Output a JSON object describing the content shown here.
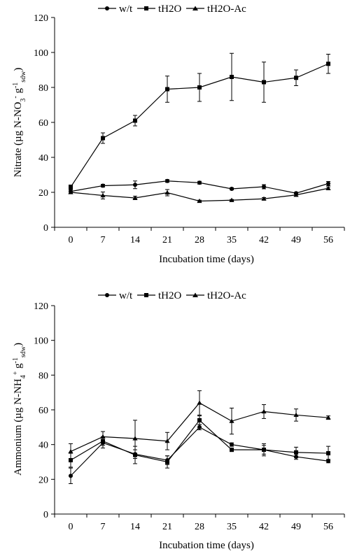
{
  "chart_data": [
    {
      "type": "line",
      "ylabel_main": "Nitrate (µg N-NO",
      "ylabel_sub1": "3",
      "ylabel_sup1": "-",
      "ylabel_mid": " g",
      "ylabel_sup2": "-1",
      "ylabel_sub2": "sdw",
      "ylabel_end": ")",
      "xlabel": "Incubation time (days)",
      "x": [
        0,
        7,
        14,
        21,
        28,
        35,
        42,
        49,
        56
      ],
      "ylim": [
        0,
        120
      ],
      "yticks": [
        0,
        20,
        40,
        60,
        80,
        100,
        120
      ],
      "legend_position": "top",
      "grid": false,
      "series": [
        {
          "name": "w/t",
          "marker": "circle",
          "values": [
            20.5,
            23.8,
            24.3,
            26.5,
            25.5,
            22.0,
            23.2,
            19.5,
            25.0
          ],
          "errors": [
            1.0,
            0.8,
            2.2,
            0.8,
            0.8,
            0.6,
            1.2,
            0.5,
            1.2
          ]
        },
        {
          "name": "tH2O",
          "marker": "square",
          "values": [
            23.0,
            51.0,
            61.0,
            79.0,
            80.0,
            86.0,
            83.0,
            85.5,
            93.5
          ],
          "errors": [
            1.2,
            3.0,
            3.0,
            7.5,
            8.0,
            13.5,
            11.5,
            4.5,
            5.5
          ]
        },
        {
          "name": "tH2O-Ac",
          "marker": "triangle",
          "values": [
            20.0,
            18.2,
            16.8,
            19.8,
            15.0,
            15.5,
            16.3,
            18.5,
            22.3
          ],
          "errors": [
            0.8,
            2.0,
            1.0,
            1.8,
            0.5,
            0.4,
            0.7,
            0.8,
            0.8
          ]
        }
      ]
    },
    {
      "type": "line",
      "ylabel_main": "Ammonium (µg N-NH",
      "ylabel_sub1": "4",
      "ylabel_sup1": "+",
      "ylabel_mid": " g",
      "ylabel_sup2": "-1",
      "ylabel_sub2": "sdw",
      "ylabel_end": ")",
      "xlabel": "Incubation time (days)",
      "x": [
        0,
        7,
        14,
        21,
        28,
        35,
        42,
        49,
        56
      ],
      "ylim": [
        0,
        120
      ],
      "yticks": [
        0,
        20,
        40,
        60,
        80,
        100,
        120
      ],
      "legend_position": "top",
      "grid": false,
      "series": [
        {
          "name": "w/t",
          "marker": "circle",
          "values": [
            22.0,
            41.0,
            34.5,
            31.0,
            50.0,
            40.0,
            37.0,
            33.0,
            30.5
          ],
          "errors": [
            4.5,
            3.0,
            2.5,
            2.5,
            1.5,
            1.0,
            2.5,
            1.5,
            1.0
          ]
        },
        {
          "name": "tH2O",
          "marker": "square",
          "values": [
            31.0,
            42.0,
            34.0,
            30.0,
            54.0,
            37.0,
            37.0,
            35.5,
            35.0
          ],
          "errors": [
            4.0,
            2.5,
            5.0,
            3.5,
            2.5,
            1.0,
            3.5,
            3.0,
            4.0
          ]
        },
        {
          "name": "tH2O-Ac",
          "marker": "triangle",
          "values": [
            36.0,
            44.5,
            43.5,
            42.0,
            64.0,
            53.5,
            59.0,
            57.0,
            55.5
          ],
          "errors": [
            4.5,
            3.0,
            10.5,
            5.0,
            7.0,
            7.5,
            4.0,
            3.5,
            1.0
          ]
        }
      ]
    }
  ]
}
